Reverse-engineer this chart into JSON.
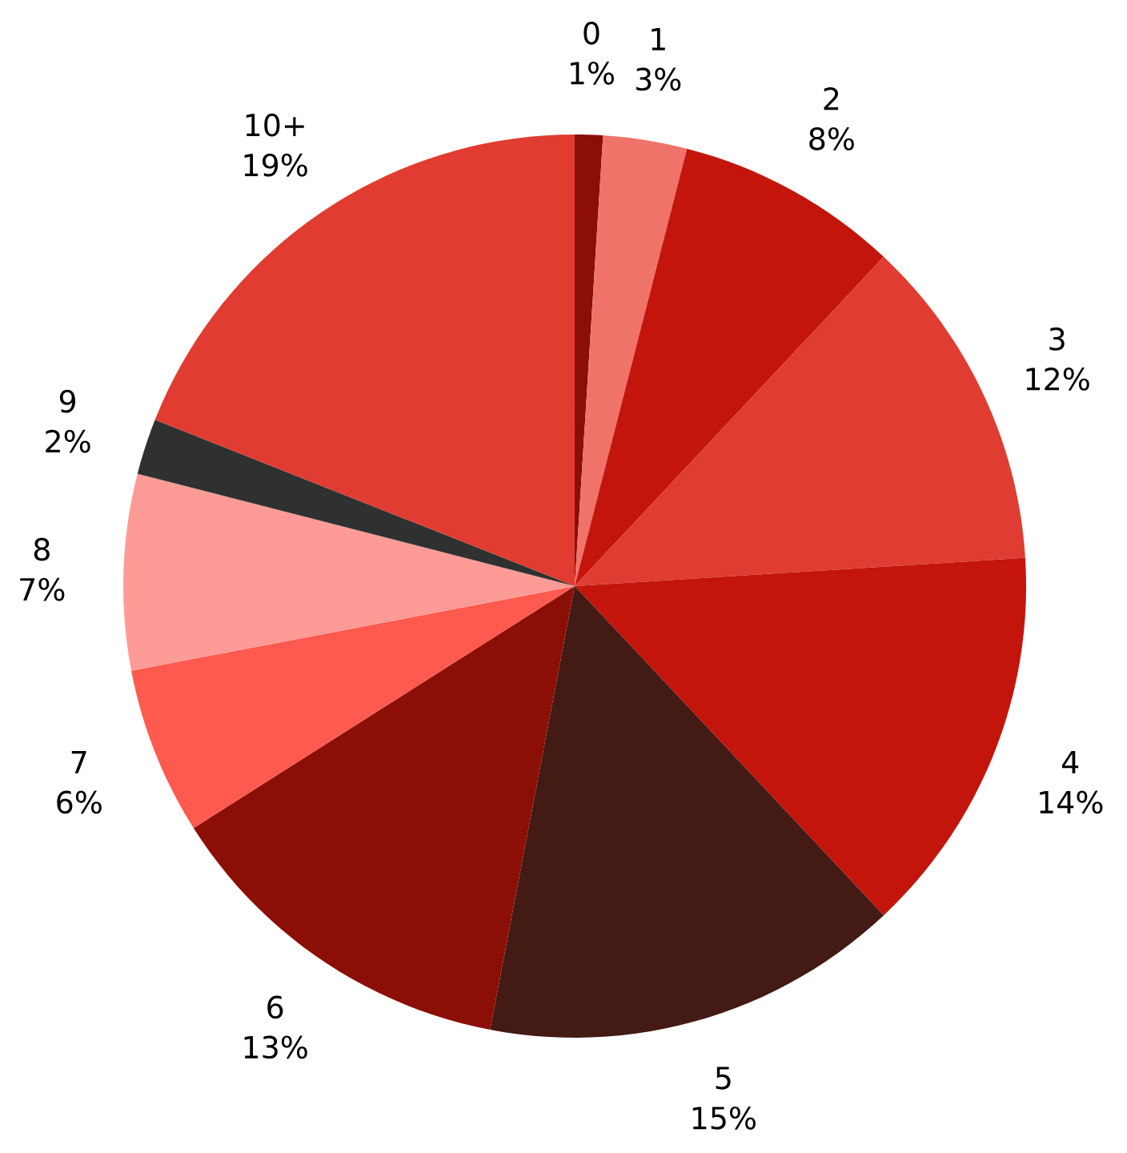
{
  "chart_data": {
    "type": "pie",
    "categories": [
      "0",
      "1",
      "2",
      "3",
      "4",
      "5",
      "6",
      "7",
      "8",
      "9",
      "10+"
    ],
    "values": [
      1,
      3,
      8,
      12,
      14,
      15,
      13,
      6,
      7,
      2,
      19
    ],
    "value_labels": [
      "1%",
      "3%",
      "8%",
      "12%",
      "14%",
      "15%",
      "13%",
      "6%",
      "7%",
      "2%",
      "19%"
    ],
    "colors": [
      "#8b0f07",
      "#f0736a",
      "#c4150c",
      "#e03c31",
      "#c4150c",
      "#431a14",
      "#8b0f07",
      "#ff5a4f",
      "#ff9b96",
      "#2f3130",
      "#e03c31"
    ]
  }
}
